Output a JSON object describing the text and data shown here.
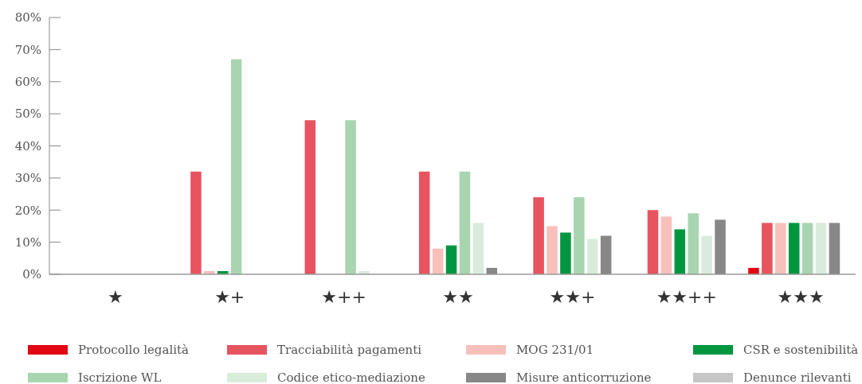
{
  "chart_data": {
    "type": "bar",
    "categories": [
      "★",
      "★+",
      "★++",
      "★★",
      "★★+",
      "★★++",
      "★★★"
    ],
    "series": [
      {
        "name": "Protocollo legalità",
        "color": "#e30613",
        "values": [
          0,
          0,
          0,
          0,
          0,
          0,
          2
        ]
      },
      {
        "name": "Tracciabilità pagamenti",
        "color": "#e85360",
        "values": [
          0,
          32,
          48,
          32,
          24,
          20,
          16
        ]
      },
      {
        "name": "MOG 231/01",
        "color": "#f7c0bb",
        "values": [
          0,
          1,
          0,
          8,
          15,
          18,
          16
        ]
      },
      {
        "name": "CSR e sostenibilità",
        "color": "#009640",
        "values": [
          0,
          1,
          0,
          9,
          13,
          14,
          16
        ]
      },
      {
        "name": "Iscrizione WL",
        "color": "#a8d5b0",
        "values": [
          0,
          67,
          48,
          32,
          24,
          19,
          16
        ]
      },
      {
        "name": "Codice etico-mediazione",
        "color": "#d9ecdb",
        "values": [
          0,
          0,
          1,
          16,
          11,
          12,
          16
        ]
      },
      {
        "name": "Misure anticorruzione",
        "color": "#878787",
        "values": [
          0,
          0,
          0,
          2,
          12,
          17,
          16
        ]
      },
      {
        "name": "Denunce rilevanti",
        "color": "#c6c6c6",
        "values": [
          0,
          0,
          0,
          0,
          0,
          0,
          0
        ]
      }
    ],
    "ylim": [
      0,
      80
    ],
    "yticks": [
      {
        "value": 0,
        "label": "0%"
      },
      {
        "value": 10,
        "label": "10%"
      },
      {
        "value": 20,
        "label": "20%"
      },
      {
        "value": 30,
        "label": "30%"
      },
      {
        "value": 40,
        "label": "40%"
      },
      {
        "value": 50,
        "label": "50%"
      },
      {
        "value": 60,
        "label": "60%"
      },
      {
        "value": 70,
        "label": "70%"
      },
      {
        "value": 80,
        "label": "80%"
      }
    ],
    "grid": false,
    "legend": "bottom"
  }
}
